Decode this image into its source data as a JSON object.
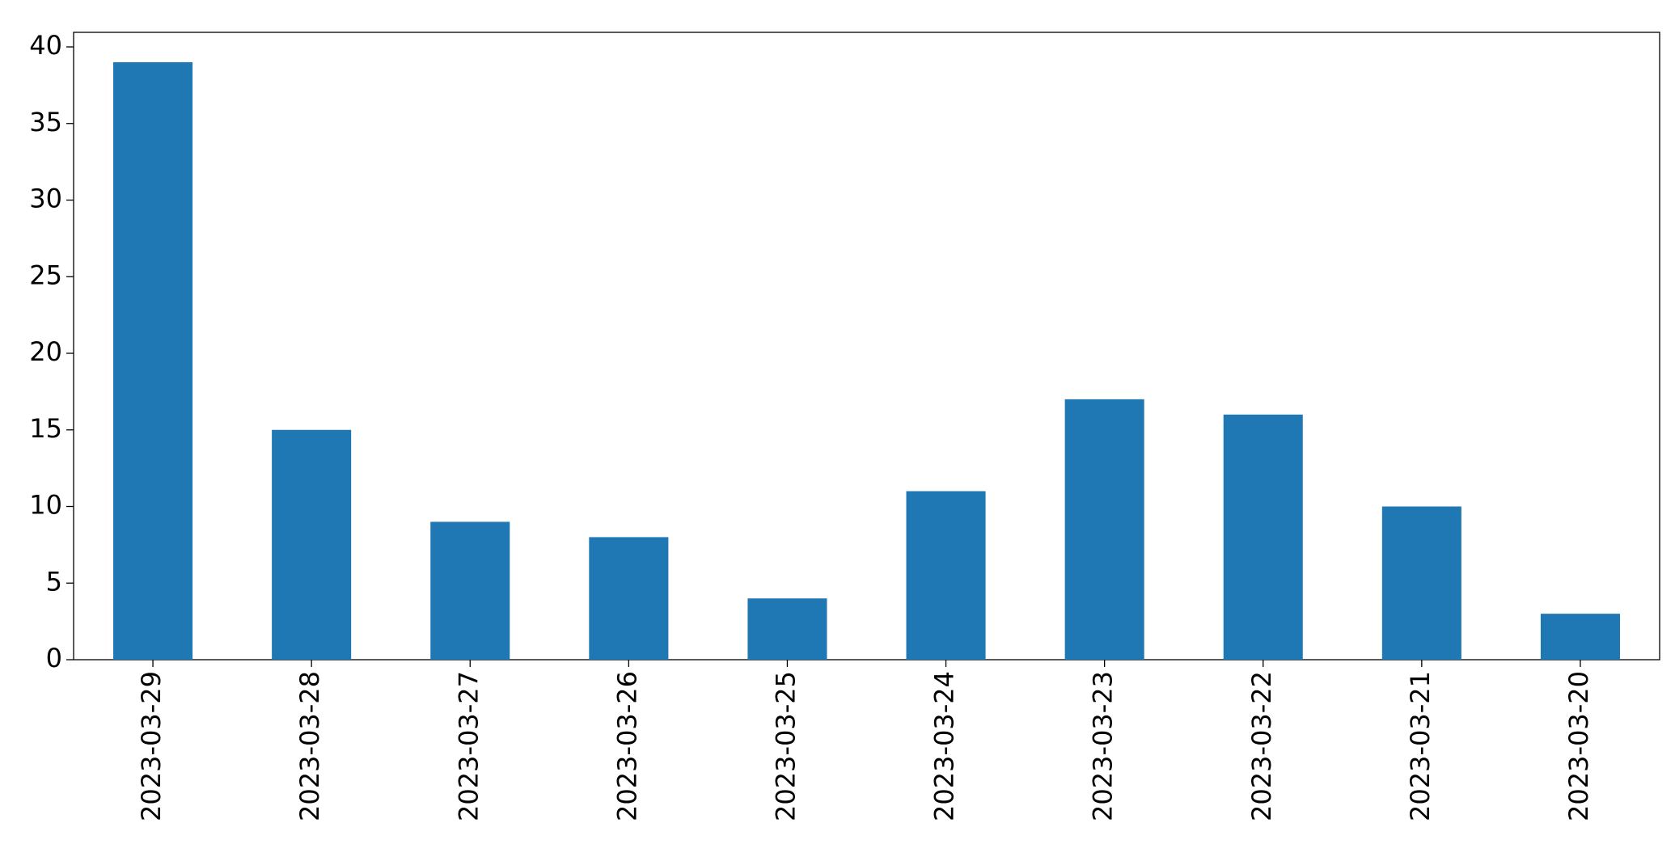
{
  "chart_data": {
    "type": "bar",
    "categories": [
      "2023-03-29",
      "2023-03-28",
      "2023-03-27",
      "2023-03-26",
      "2023-03-25",
      "2023-03-24",
      "2023-03-23",
      "2023-03-22",
      "2023-03-21",
      "2023-03-20"
    ],
    "values": [
      39,
      15,
      9,
      8,
      4,
      11,
      17,
      16,
      10,
      3
    ],
    "color": "#1f77b4",
    "ylim": [
      0,
      40.95
    ],
    "yticks": [
      0,
      5,
      10,
      15,
      20,
      25,
      30,
      35,
      40
    ],
    "grid": false
  }
}
